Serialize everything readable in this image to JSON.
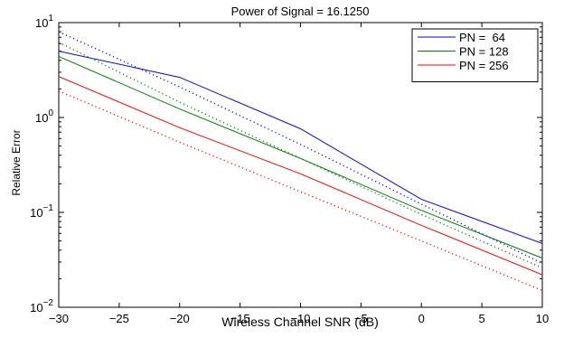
{
  "figure": {
    "title": "Power of Signal = 16.1250",
    "xlabel": "Wireless Channel SNR (dB)",
    "ylabel": "Relative Error"
  },
  "chart_data": {
    "type": "line",
    "title": "Power of Signal = 16.1250",
    "xlabel": "Wireless Channel SNR (dB)",
    "ylabel": "Relative Error",
    "xscale": "linear",
    "yscale": "log",
    "xlim": [
      -30,
      10
    ],
    "ylim": [
      0.01,
      10
    ],
    "xticks": [
      -30,
      -25,
      -20,
      -15,
      -10,
      -5,
      0,
      5,
      10
    ],
    "xtick_labels": [
      "−30",
      "−25",
      "−20",
      "−15",
      "−10",
      "−5",
      "0",
      "5",
      "10"
    ],
    "yticks": [
      0.01,
      0.1,
      1,
      10
    ],
    "ytick_labels": [
      {
        "base": "10",
        "exp": "−2"
      },
      {
        "base": "10",
        "exp": "−1"
      },
      {
        "base": "10",
        "exp": "0"
      },
      {
        "base": "10",
        "exp": "1"
      }
    ],
    "grid": false,
    "legend_position": "top-right",
    "x": [
      -30,
      -20,
      -10,
      0,
      10
    ],
    "series": [
      {
        "name": "PN =  64",
        "color": "#0000ff",
        "style": "solid",
        "values": [
          5.0,
          2.65,
          0.76,
          0.137,
          0.047
        ]
      },
      {
        "name": "PN = 128",
        "color": "#008000",
        "style": "solid",
        "values": [
          4.4,
          1.23,
          0.37,
          0.105,
          0.033
        ]
      },
      {
        "name": "PN = 256",
        "color": "#ff0000",
        "style": "solid",
        "values": [
          2.7,
          0.78,
          0.255,
          0.073,
          0.022
        ]
      },
      {
        "color": "#0000ff",
        "style": "dotted",
        "values": [
          8.0,
          2.1,
          0.52,
          0.122,
          0.029
        ]
      },
      {
        "color": "#008000",
        "style": "dotted",
        "values": [
          6.2,
          1.45,
          0.37,
          0.095,
          0.026
        ]
      },
      {
        "color": "#ff0000",
        "style": "dotted",
        "values": [
          1.9,
          0.55,
          0.165,
          0.05,
          0.015
        ]
      }
    ]
  }
}
